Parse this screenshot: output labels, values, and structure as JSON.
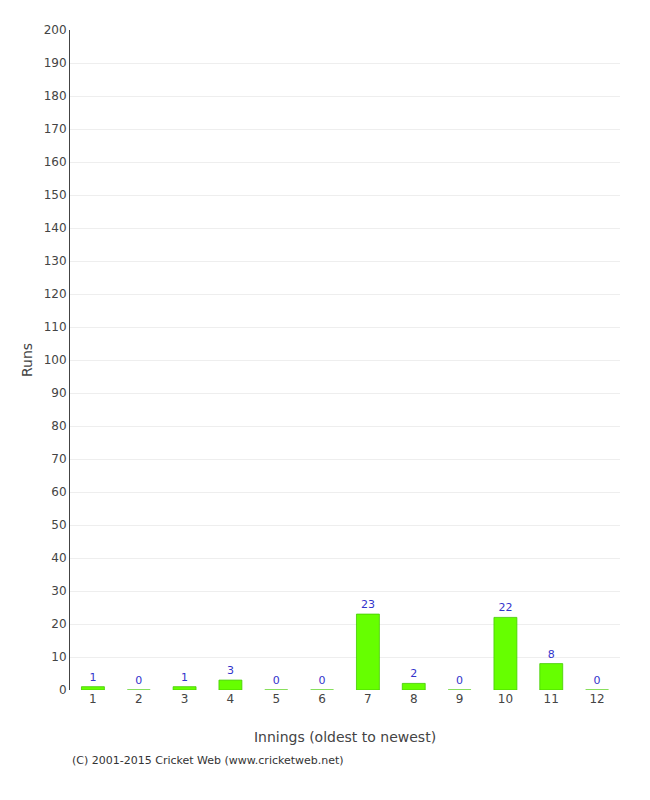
{
  "chart_data": {
    "type": "bar",
    "xlabel": "Innings (oldest to newest)",
    "ylabel": "Runs",
    "categories": [
      "1",
      "2",
      "3",
      "4",
      "5",
      "6",
      "7",
      "8",
      "9",
      "10",
      "11",
      "12"
    ],
    "values": [
      1,
      0,
      1,
      3,
      0,
      0,
      23,
      2,
      0,
      22,
      8,
      0
    ],
    "color": "#66ff00",
    "ylim": [
      0,
      200
    ],
    "yticks": [
      0,
      10,
      20,
      30,
      40,
      50,
      60,
      70,
      80,
      90,
      100,
      110,
      120,
      130,
      140,
      150,
      160,
      170,
      180,
      190,
      200
    ],
    "grid": true,
    "data_labels": true,
    "annotations": [
      "(C) 2001-2015 Cricket Web (www.cricketweb.net)"
    ]
  }
}
